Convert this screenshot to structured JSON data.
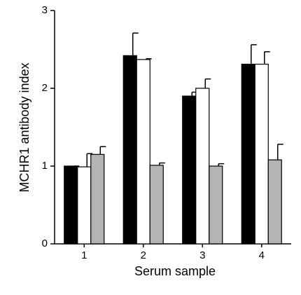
{
  "chart_data": {
    "type": "bar",
    "x_label": "Serum sample",
    "y_label": "MCHR1 antibody index",
    "categories": [
      "1",
      "2",
      "3",
      "4"
    ],
    "series": [
      {
        "color": "#000000",
        "values": [
          1.0,
          2.42,
          1.9,
          2.31
        ],
        "errors": [
          0,
          0.29,
          0.05,
          0.25
        ]
      },
      {
        "color": "#ffffff",
        "values": [
          0.99,
          2.37,
          2.0,
          2.31
        ],
        "errors": [
          0.17,
          0.01,
          0.12,
          0.16
        ]
      },
      {
        "color": "#b3b3b3",
        "values": [
          1.15,
          1.01,
          1.0,
          1.08
        ],
        "errors": [
          0.1,
          0.03,
          0.03,
          0.2
        ]
      }
    ],
    "ylim": [
      0,
      3
    ],
    "yticks": [
      0,
      1,
      2,
      3
    ],
    "grid": false
  }
}
